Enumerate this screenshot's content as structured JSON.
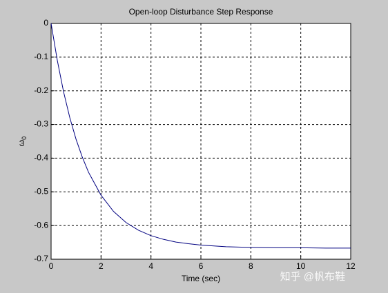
{
  "chart_data": {
    "type": "line",
    "title": "Open-loop Disturbance Step Response",
    "xlabel": "Time (sec)",
    "ylabel": "ω",
    "ylabel_subscript": "0",
    "x": [
      0,
      0.25,
      0.5,
      0.75,
      1,
      1.25,
      1.5,
      2,
      2.5,
      3,
      3.5,
      4,
      4.5,
      5,
      5.5,
      6,
      7,
      8,
      9,
      10,
      11,
      12
    ],
    "series": [
      {
        "color": "#000080",
        "values": [
          0,
          -0.11,
          -0.203,
          -0.28,
          -0.344,
          -0.397,
          -0.442,
          -0.51,
          -0.558,
          -0.591,
          -0.614,
          -0.63,
          -0.641,
          -0.649,
          -0.654,
          -0.658,
          -0.663,
          -0.665,
          -0.666,
          -0.666,
          -0.667,
          -0.667
        ]
      }
    ],
    "xlim": [
      0,
      12
    ],
    "ylim": [
      -0.7,
      0
    ],
    "xticks": [
      0,
      2,
      4,
      6,
      8,
      10,
      12
    ],
    "yticks": [
      0,
      -0.1,
      -0.2,
      -0.3,
      -0.4,
      -0.5,
      -0.6,
      -0.7
    ],
    "grid": true
  },
  "watermark": "知乎 @帆布鞋"
}
